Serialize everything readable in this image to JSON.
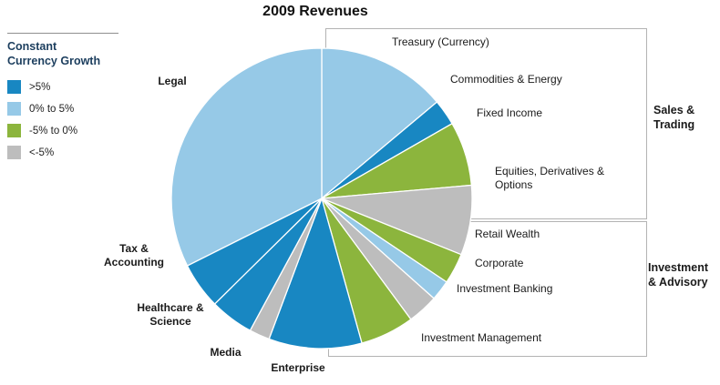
{
  "title": "2009 Revenues",
  "legend": {
    "title": "Constant Currency Growth",
    "items": [
      {
        "label": ">5%",
        "color": "#1887c2"
      },
      {
        "label": "0% to 5%",
        "color": "#96c9e7"
      },
      {
        "label": "-5% to 0%",
        "color": "#8cb53d"
      },
      {
        "label": "<-5%",
        "color": "#bdbdbd"
      }
    ]
  },
  "groups": [
    {
      "label": "Sales & Trading"
    },
    {
      "label": "Investment & Advisory"
    }
  ],
  "chart_data": {
    "type": "pie",
    "title": "2009 Revenues",
    "values_note": "percent share of total, estimated from slice angles",
    "start_angle": "top, clockwise",
    "colors": {
      ">5%": "#1887c2",
      "0% to 5%": "#96c9e7",
      "-5% to 0%": "#8cb53d",
      "<-5%": "#bdbdbd"
    },
    "slices": [
      {
        "name": "Treasury (Currency)",
        "value": 13.9,
        "growth": "0% to 5%",
        "group": "Sales & Trading"
      },
      {
        "name": "Commodities & Energy",
        "value": 2.8,
        "growth": ">5%",
        "group": "Sales & Trading"
      },
      {
        "name": "Fixed Income",
        "value": 6.9,
        "growth": "-5% to 0%",
        "group": "Sales & Trading"
      },
      {
        "name": "Equities, Derivatives & Options",
        "value": 7.5,
        "growth": "<-5%",
        "group": "Sales & Trading"
      },
      {
        "name": "Retail Wealth",
        "value": 3.3,
        "growth": "-5% to 0%",
        "group": "Investment & Advisory"
      },
      {
        "name": "Corporate",
        "value": 2.2,
        "growth": "0% to 5%",
        "group": "Investment & Advisory"
      },
      {
        "name": "Investment Banking",
        "value": 3.3,
        "growth": "<-5%",
        "group": "Investment & Advisory"
      },
      {
        "name": "Investment Management",
        "value": 5.8,
        "growth": "-5% to 0%",
        "group": "Investment & Advisory"
      },
      {
        "name": "Enterprise",
        "value": 10.0,
        "growth": ">5%",
        "group": ""
      },
      {
        "name": "Media",
        "value": 2.2,
        "growth": "<-5%",
        "group": ""
      },
      {
        "name": "Healthcare & Science",
        "value": 4.7,
        "growth": ">5%",
        "group": ""
      },
      {
        "name": "Tax & Accounting",
        "value": 5.0,
        "growth": ">5%",
        "group": ""
      },
      {
        "name": "Legal",
        "value": 32.4,
        "growth": "0% to 5%",
        "group": ""
      }
    ]
  }
}
